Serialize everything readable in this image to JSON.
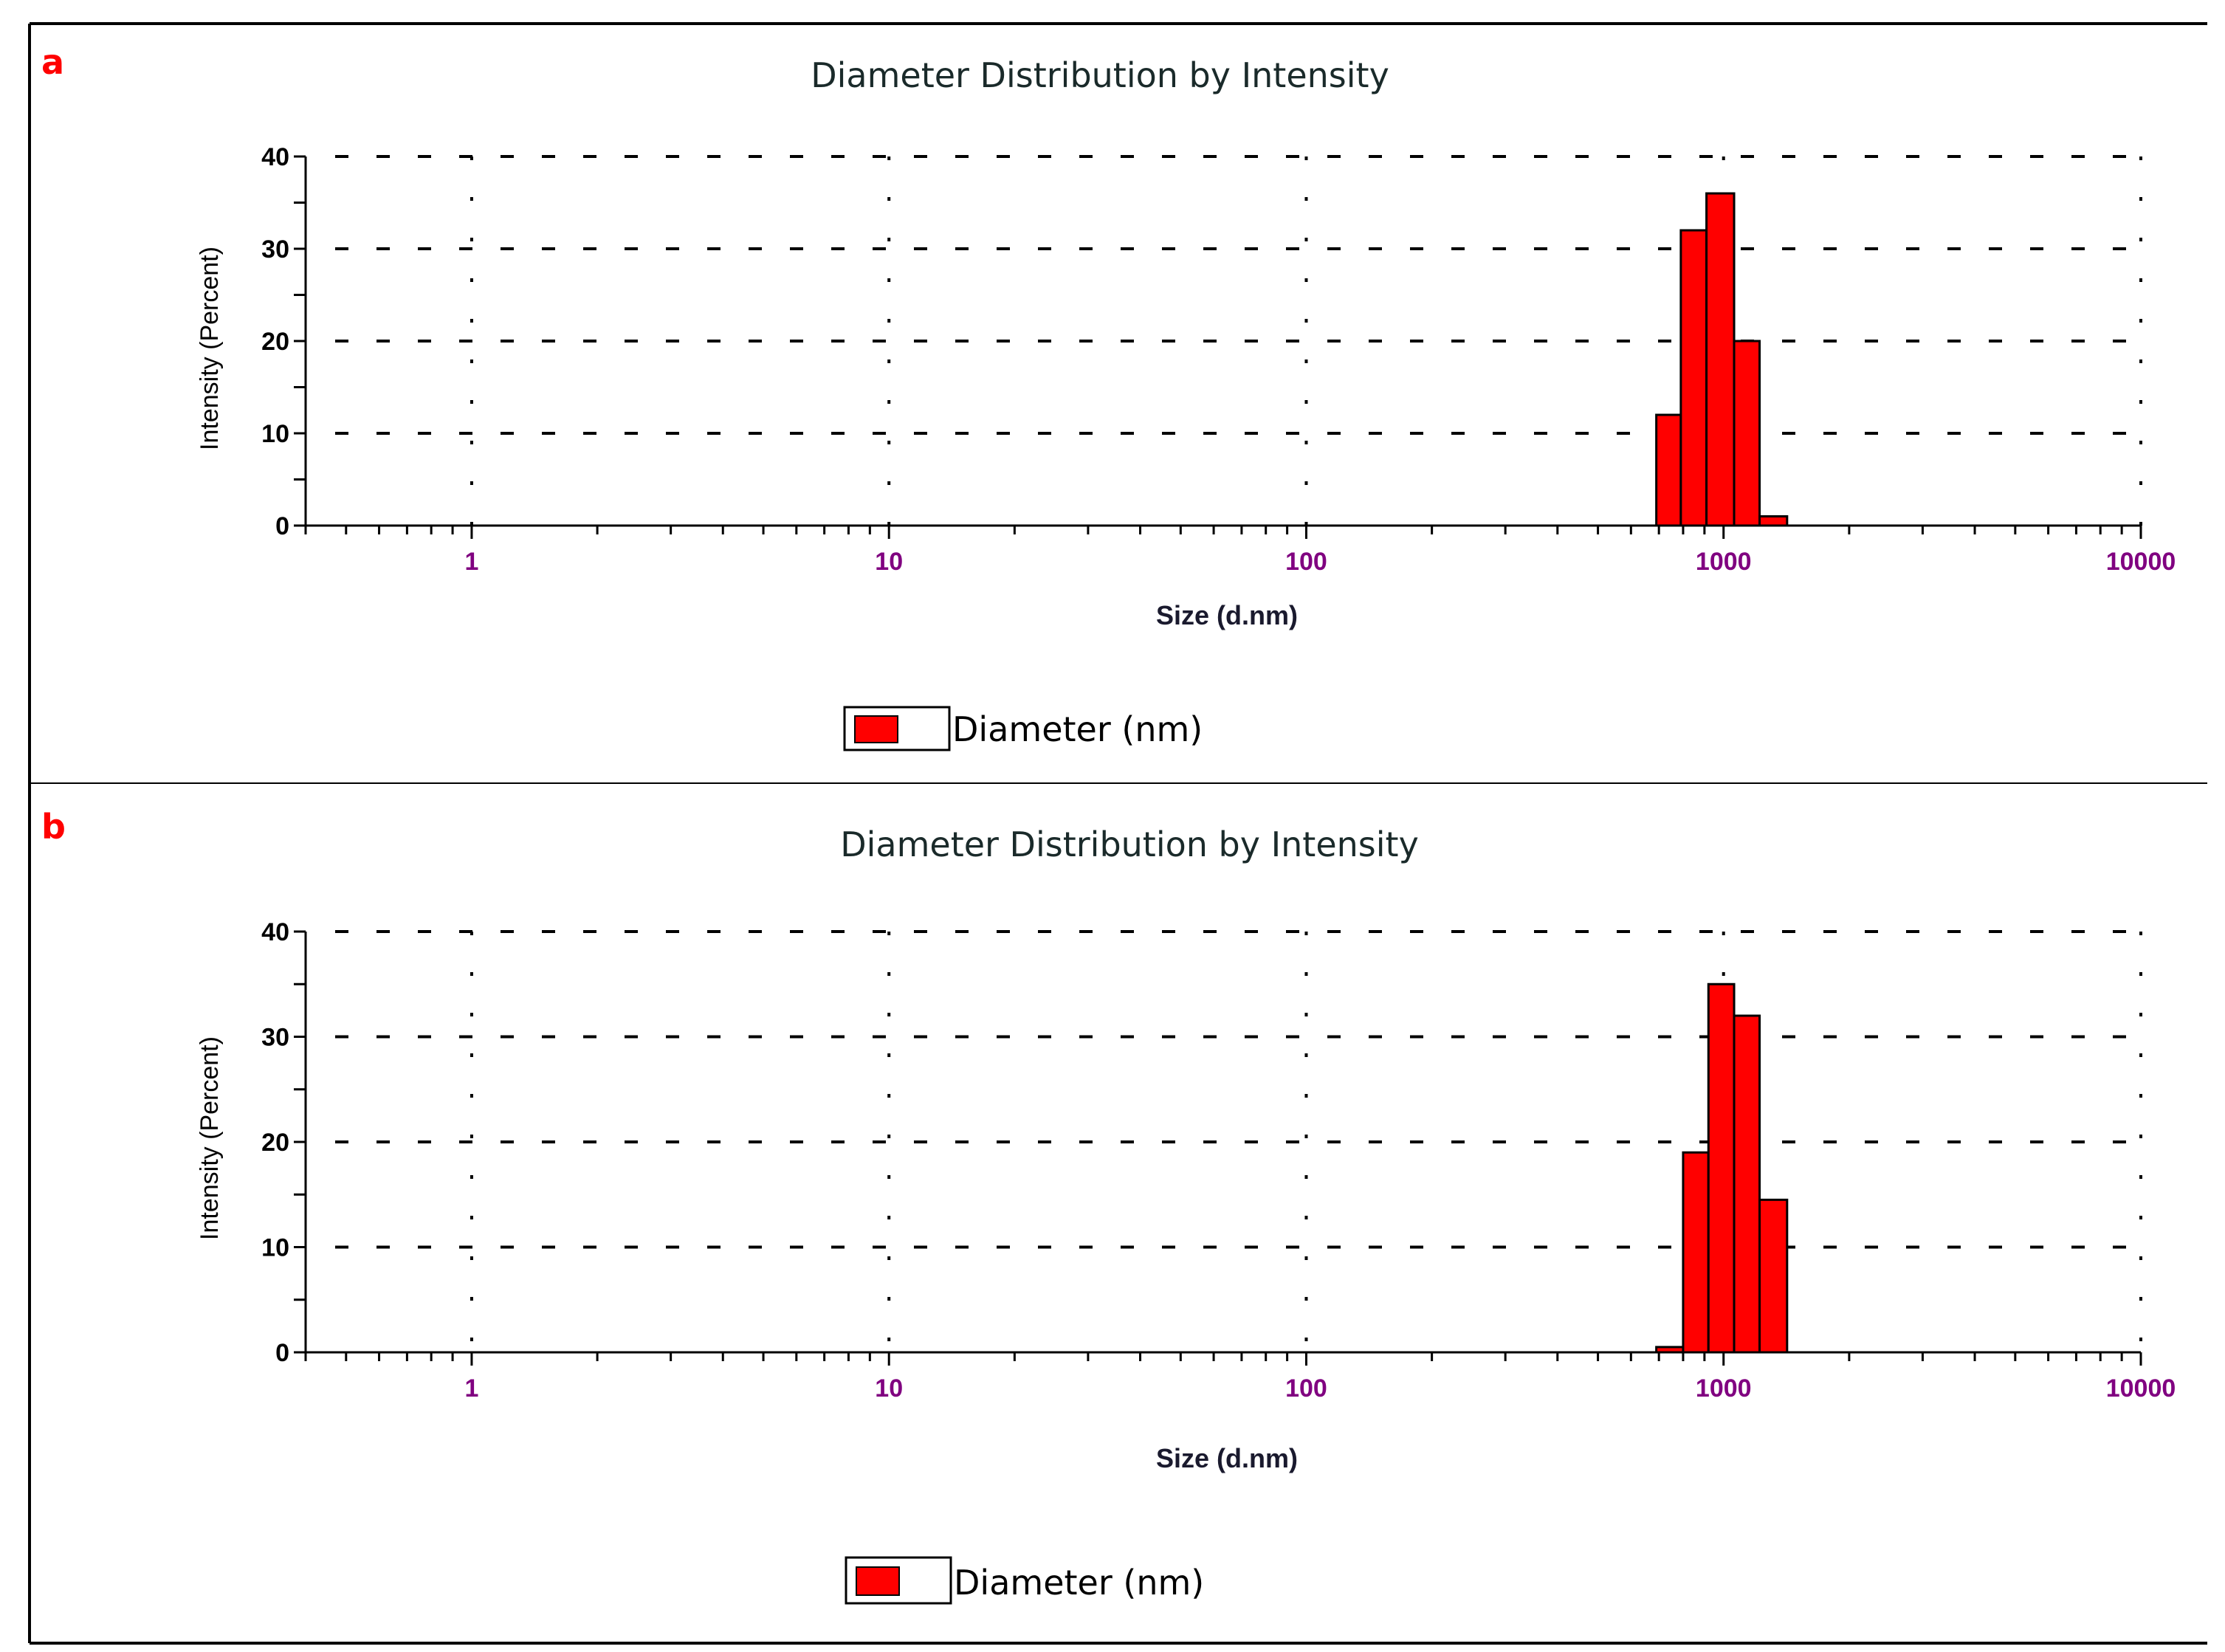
{
  "figure": {
    "colors": {
      "bar_fill": "#ff0000",
      "bar_stroke": "#000000",
      "panel_letter": "#ff0000",
      "tick_x": "#800080",
      "frame": "#000000"
    }
  },
  "chart_data": [
    {
      "panel": "a",
      "type": "bar",
      "title": "Diameter Distribution by Intensity",
      "xlabel": "Size (d.nm)",
      "ylabel": "Intensity (Percent)",
      "x_scale": "log",
      "xlim": [
        0.4,
        10000
      ],
      "ylim": [
        0,
        40
      ],
      "x_ticks": [
        "1",
        "10",
        "100",
        "1000",
        "10000"
      ],
      "y_ticks": [
        "0",
        "10",
        "20",
        "30",
        "40"
      ],
      "grid": true,
      "legend": {
        "position": "bottom-center",
        "entries": [
          "Diameter (nm)"
        ]
      },
      "series": [
        {
          "name": "Diameter (nm)",
          "bins": [
            {
              "from": 690,
              "to": 790,
              "value": 12
            },
            {
              "from": 790,
              "to": 910,
              "value": 32
            },
            {
              "from": 910,
              "to": 1060,
              "value": 36
            },
            {
              "from": 1060,
              "to": 1220,
              "value": 20
            },
            {
              "from": 1220,
              "to": 1420,
              "value": 1
            }
          ]
        }
      ]
    },
    {
      "panel": "b",
      "type": "bar",
      "title": "Diameter Distribution by Intensity",
      "xlabel": "Size (d.nm)",
      "ylabel": "Intensity (Percent)",
      "x_scale": "log",
      "xlim": [
        0.4,
        10000
      ],
      "ylim": [
        0,
        40
      ],
      "x_ticks": [
        "1",
        "10",
        "100",
        "1000",
        "10000"
      ],
      "y_ticks": [
        "0",
        "10",
        "20",
        "30",
        "40"
      ],
      "grid": true,
      "legend": {
        "position": "bottom-center",
        "entries": [
          "Diameter (nm)"
        ]
      },
      "series": [
        {
          "name": "Diameter (nm)",
          "bins": [
            {
              "from": 690,
              "to": 800,
              "value": 0.5
            },
            {
              "from": 800,
              "to": 920,
              "value": 19
            },
            {
              "from": 920,
              "to": 1060,
              "value": 35
            },
            {
              "from": 1060,
              "to": 1220,
              "value": 32
            },
            {
              "from": 1220,
              "to": 1420,
              "value": 14.5
            }
          ]
        }
      ]
    }
  ]
}
